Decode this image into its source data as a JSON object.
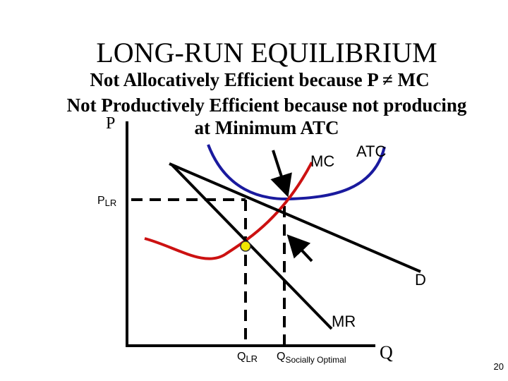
{
  "header": {
    "title": "LONG-RUN EQUILIBRIUM",
    "lines": [
      "Not Allocatively Efficient because P ≠ MC",
      "Not Productively Efficient because not producing",
      "at Minimum ATC"
    ]
  },
  "graph": {
    "y_axis": "P",
    "x_axis": "Q",
    "mc": "MC",
    "atc": "ATC",
    "d": "D",
    "mr": "MR",
    "p_lr": {
      "main": "P",
      "sub": "LR"
    },
    "q_lr": {
      "main": "Q",
      "sub": "LR"
    },
    "q_social": {
      "main": "Q",
      "sub": "Socially Optimal"
    }
  },
  "slide_number": "20"
}
